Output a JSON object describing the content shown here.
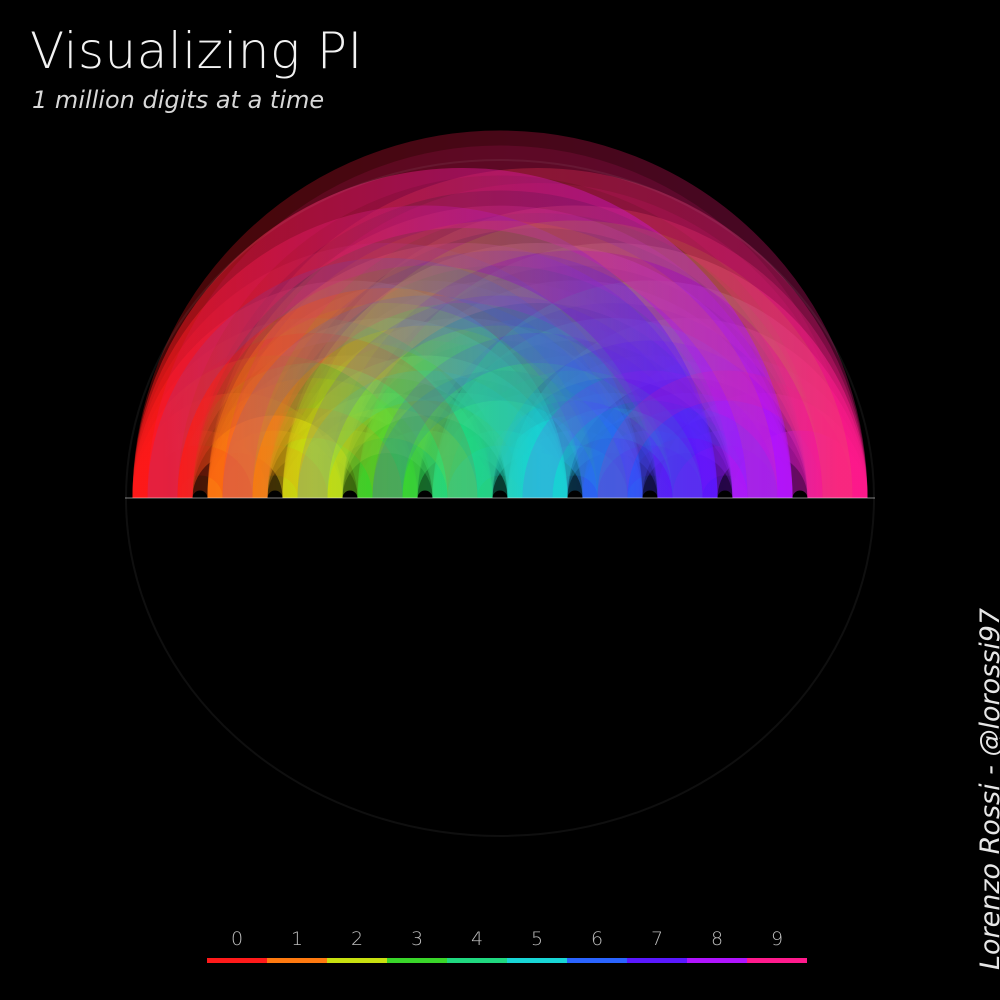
{
  "title": "Visualizing PI",
  "subtitle": "1 million digits at a time",
  "author": "Lorenzo Rossi - @lorossi97",
  "legend": [
    {
      "digit": "0",
      "color": "#ff1a1a"
    },
    {
      "digit": "1",
      "color": "#ff7a10"
    },
    {
      "digit": "2",
      "color": "#c8e010"
    },
    {
      "digit": "3",
      "color": "#3ad62a"
    },
    {
      "digit": "4",
      "color": "#20d880"
    },
    {
      "digit": "5",
      "color": "#18d6d6"
    },
    {
      "digit": "6",
      "color": "#2a64ff"
    },
    {
      "digit": "7",
      "color": "#5a18ff"
    },
    {
      "digit": "8",
      "color": "#b014ff"
    },
    {
      "digit": "9",
      "color": "#ff1a8c"
    }
  ]
}
